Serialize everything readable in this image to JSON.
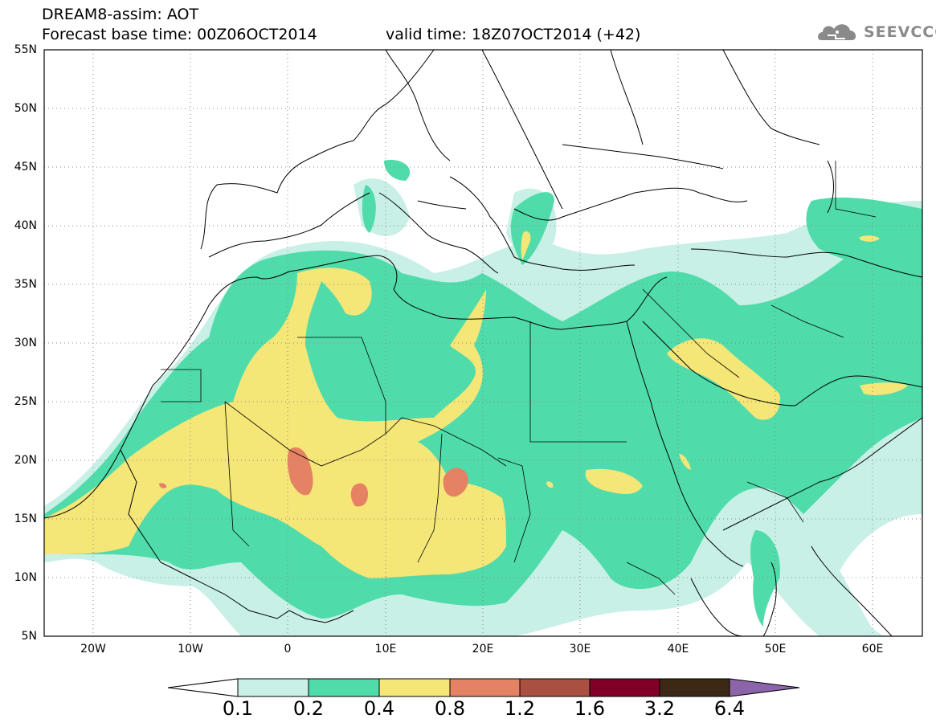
{
  "title": {
    "line1": "DREAM8-assim: AOT",
    "line2": "Forecast base time: 00Z06OCT2014",
    "valid": "valid time: 18Z07OCT2014 (+42)"
  },
  "logo": {
    "text": "SEEVCCC",
    "icon": "cloud-icon"
  },
  "map": {
    "lat_labels": [
      "55N",
      "50N",
      "45N",
      "40N",
      "35N",
      "30N",
      "25N",
      "20N",
      "15N",
      "10N",
      "5N"
    ],
    "lon_labels": [
      "20W",
      "10W",
      "0",
      "10E",
      "20E",
      "30E",
      "40E",
      "50E",
      "60E"
    ],
    "lat_range": [
      5,
      55
    ],
    "lon_range": [
      -25,
      65
    ],
    "colors": {
      "c01": "#c8f0e6",
      "c02": "#50dcaa",
      "c04": "#f5e678",
      "c08": "#e68264",
      "c12": "#aa5040",
      "c16": "#820028",
      "c32": "#3c2814",
      "c64": "#8c64aa",
      "coast": "#000000",
      "grid": "#888888"
    }
  },
  "colorbar": {
    "labels": [
      "0.1",
      "0.2",
      "0.4",
      "0.8",
      "1.2",
      "1.6",
      "3.2",
      "6.4"
    ],
    "colors": [
      "#c8f0e6",
      "#50dcaa",
      "#f5e678",
      "#e68264",
      "#aa5040",
      "#820028",
      "#3c2814"
    ],
    "under_color": "#ffffff",
    "over_color": "#8c64aa"
  }
}
